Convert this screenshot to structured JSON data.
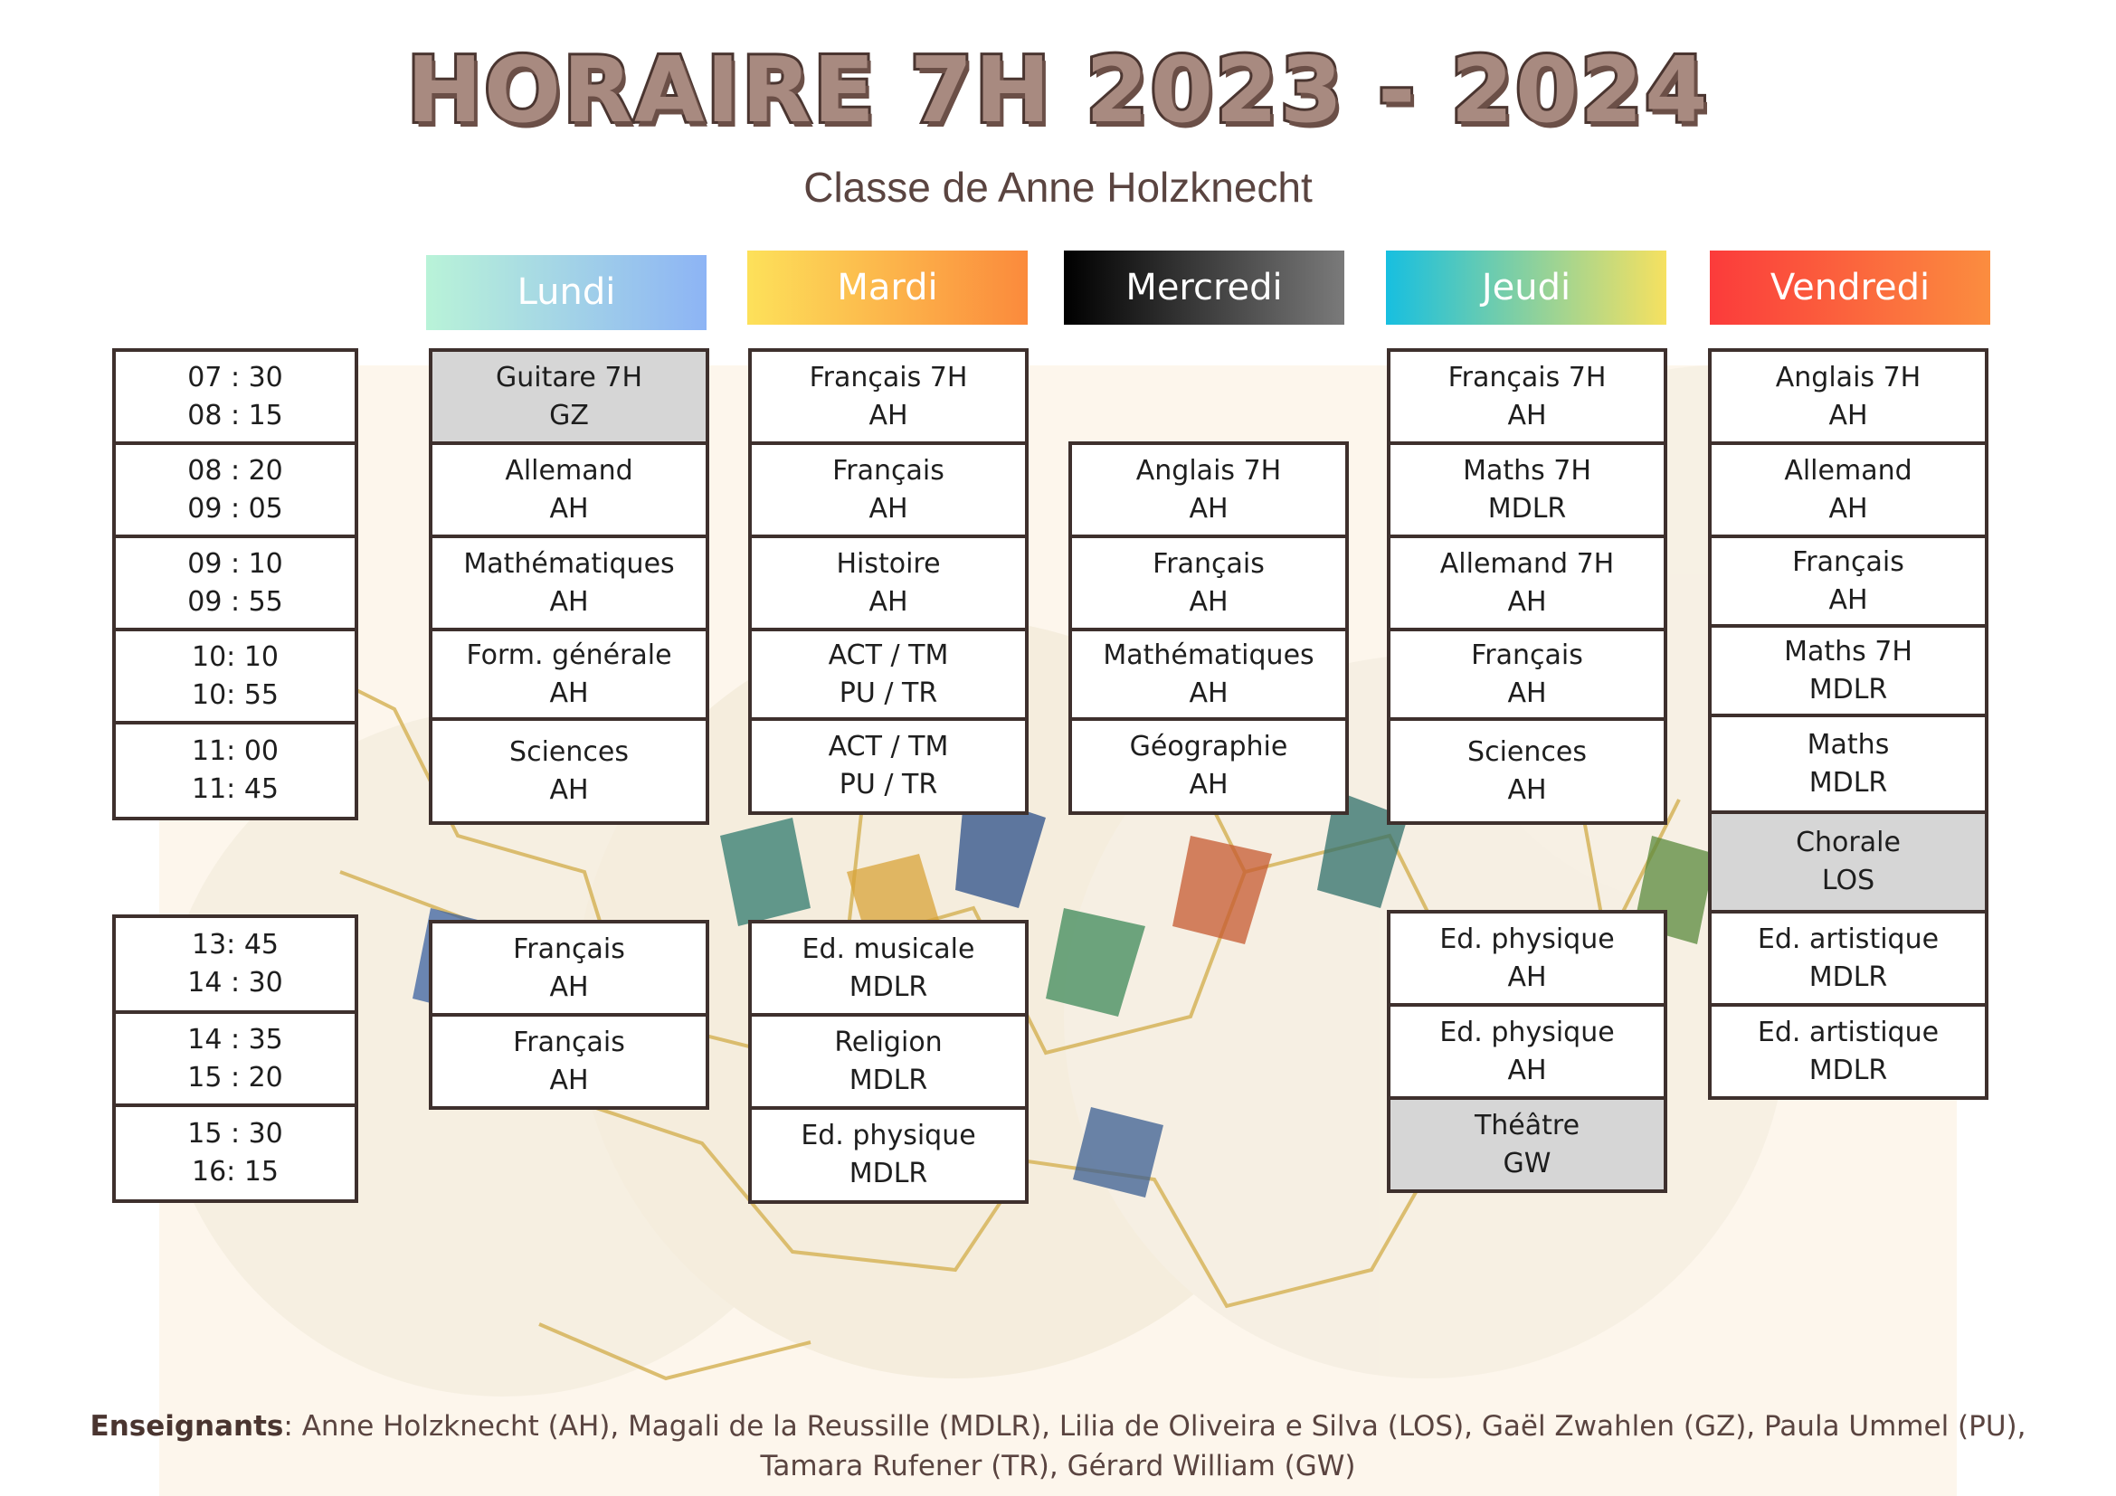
{
  "title": "HORAIRE 7H 2023 - 2024",
  "subtitle": "Classe de Anne Holzknecht",
  "days": [
    {
      "label": "Lundi",
      "gradient": [
        "#b9f3d8",
        "#8db4f5"
      ]
    },
    {
      "label": "Mardi",
      "gradient": [
        "#fde15a",
        "#fb8a3c"
      ]
    },
    {
      "label": "Mercredi",
      "gradient": [
        "#000000",
        "#7a7a7a"
      ]
    },
    {
      "label": "Jeudi",
      "gradient": [
        "#17bfe0",
        "#f6e160"
      ]
    },
    {
      "label": "Vendredi",
      "gradient": [
        "#fb3b3b",
        "#fb8d3f"
      ]
    }
  ],
  "times": [
    {
      "start": "07 : 30",
      "end": "08 : 15"
    },
    {
      "start": "08 : 20",
      "end": "09 : 05"
    },
    {
      "start": "09 : 10",
      "end": "09 : 55"
    },
    {
      "start": "10: 10",
      "end": "10: 55"
    },
    {
      "start": "11: 00",
      "end": "11: 45"
    },
    {
      "start": "13: 45",
      "end": "14 : 30"
    },
    {
      "start": "14 : 35",
      "end": "15 : 20"
    },
    {
      "start": "15 : 30",
      "end": "16: 15"
    }
  ],
  "schedule": {
    "lundi": [
      {
        "subject": "Guitare 7H",
        "teacher": "GZ",
        "highlight": true
      },
      {
        "subject": "Allemand",
        "teacher": "AH"
      },
      {
        "subject": "Mathématiques",
        "teacher": "AH"
      },
      {
        "subject": "Form. générale",
        "teacher": "AH"
      },
      {
        "subject": "Sciences",
        "teacher": "AH"
      },
      {
        "subject": "Français",
        "teacher": "AH"
      },
      {
        "subject": "Français",
        "teacher": "AH"
      }
    ],
    "mardi": [
      {
        "subject": "Français 7H",
        "teacher": "AH"
      },
      {
        "subject": "Français",
        "teacher": "AH"
      },
      {
        "subject": "Histoire",
        "teacher": "AH"
      },
      {
        "subject": "ACT / TM",
        "teacher": "PU / TR"
      },
      {
        "subject": "ACT / TM",
        "teacher": "PU / TR"
      },
      {
        "subject": "Ed. musicale",
        "teacher": "MDLR"
      },
      {
        "subject": "Religion",
        "teacher": "MDLR"
      },
      {
        "subject": "Ed. physique",
        "teacher": "MDLR"
      }
    ],
    "mercredi": [
      {
        "subject": "Anglais 7H",
        "teacher": "AH"
      },
      {
        "subject": "Français",
        "teacher": "AH"
      },
      {
        "subject": "Mathématiques",
        "teacher": "AH"
      },
      {
        "subject": "Géographie",
        "teacher": "AH"
      }
    ],
    "jeudi": [
      {
        "subject": "Français 7H",
        "teacher": "AH"
      },
      {
        "subject": "Maths 7H",
        "teacher": "MDLR"
      },
      {
        "subject": "Allemand 7H",
        "teacher": "AH"
      },
      {
        "subject": "Français",
        "teacher": "AH"
      },
      {
        "subject": "Sciences",
        "teacher": "AH"
      },
      {
        "subject": "Ed. physique",
        "teacher": "AH"
      },
      {
        "subject": "Ed. physique",
        "teacher": "AH"
      },
      {
        "subject": "Théâtre",
        "teacher": "GW",
        "highlight": true
      }
    ],
    "vendredi": [
      {
        "subject": "Anglais 7H",
        "teacher": "AH"
      },
      {
        "subject": "Allemand",
        "teacher": "AH"
      },
      {
        "subject": "Français",
        "teacher": "AH"
      },
      {
        "subject": "Maths 7H",
        "teacher": "MDLR"
      },
      {
        "subject": "Maths",
        "teacher": "MDLR"
      },
      {
        "subject": "Chorale",
        "teacher": "LOS",
        "highlight": true
      },
      {
        "subject": "Ed. artistique",
        "teacher": "MDLR"
      },
      {
        "subject": "Ed. artistique",
        "teacher": "MDLR"
      }
    ]
  },
  "footer": {
    "label": "Enseignants",
    "line1": ": Anne Holzknecht (AH), Magali de la Reussille (MDLR), Lilia de Oliveira e Silva (LOS), Gaël Zwahlen (GZ), Paula Ummel (PU),",
    "line2": "Tamara Rufener (TR), Gérard William (GW)"
  },
  "colors": {
    "border": "#3e302d",
    "highlight": "#d6d6d6",
    "title_fill": "#a88a80",
    "title_stroke": "#4a3530"
  }
}
